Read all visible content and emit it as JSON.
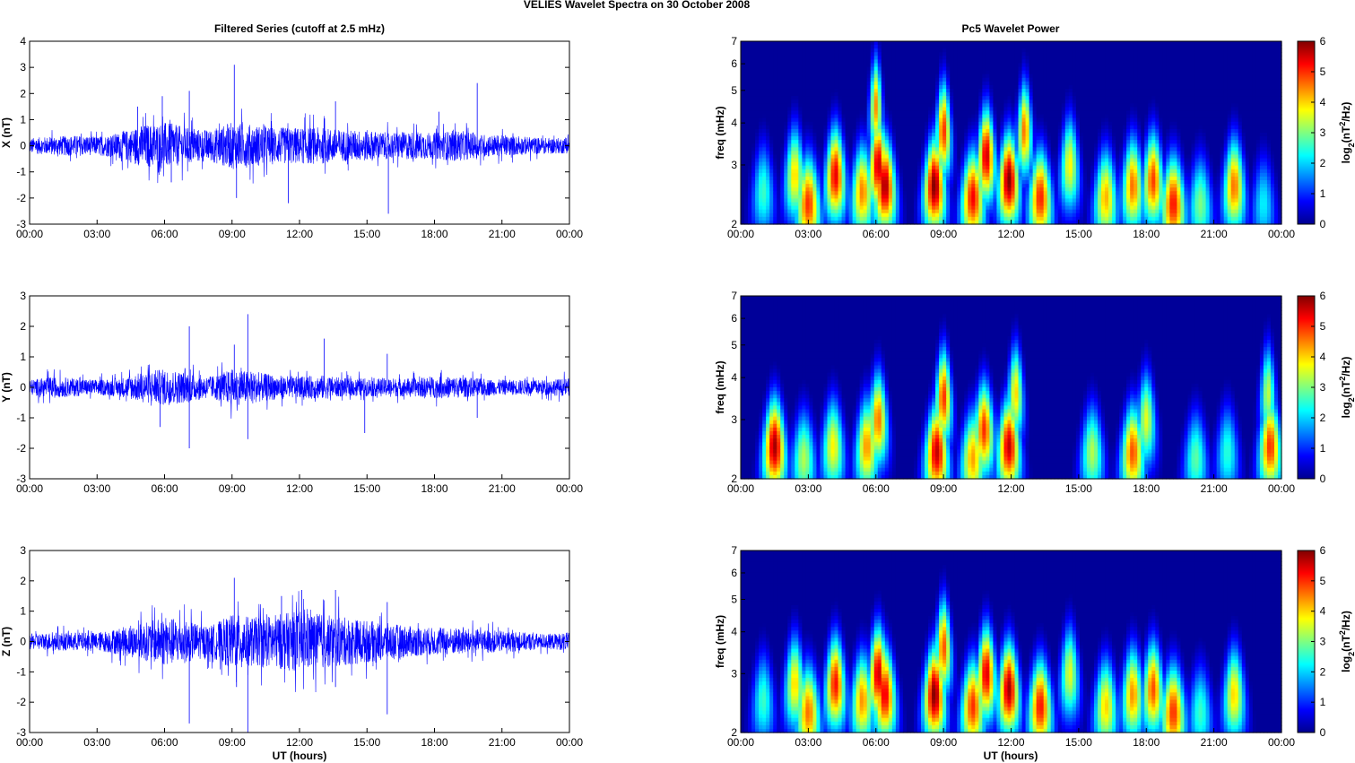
{
  "figure_title": "VELIES Wavelet Spectra on 30 October   2008",
  "left_title": "Filtered Series (cutoff at 2.5 mHz)",
  "right_title": "Pc5 Wavelet Power",
  "xlabel": "UT (hours)",
  "freq_label": "freq (mHz)",
  "colorbar_label": "log2(nT2/Hz)",
  "colors": {
    "trace": "#0000ff",
    "axes": "#000000",
    "background": "#ffffff"
  },
  "chart_data": [
    {
      "type": "line",
      "title": "Filtered Series (cutoff at 2.5 mHz)",
      "ylabel": "X (nT)",
      "xlim": [
        "00:00",
        "24:00"
      ],
      "ylim": [
        -3,
        4
      ],
      "x_ticks": [
        "00:00",
        "03:00",
        "06:00",
        "09:00",
        "12:00",
        "15:00",
        "18:00",
        "21:00",
        "00:00"
      ],
      "y_ticks": [
        -3,
        -2,
        -1,
        0,
        1,
        2,
        3,
        4
      ],
      "envelope": {
        "x": [
          0,
          1,
          2,
          3,
          4,
          5,
          6,
          7,
          8,
          9,
          10,
          11,
          12,
          13,
          14,
          15,
          16,
          17,
          18,
          19,
          20,
          21,
          22,
          23,
          24
        ],
        "amp": [
          0.3,
          0.35,
          0.4,
          0.35,
          0.5,
          0.8,
          0.9,
          0.7,
          0.6,
          0.9,
          0.8,
          0.7,
          0.7,
          0.7,
          0.6,
          0.6,
          0.5,
          0.55,
          0.5,
          0.6,
          0.45,
          0.4,
          0.35,
          0.3,
          0.3
        ]
      },
      "spikes": [
        {
          "x": 4.8,
          "y": 1.5
        },
        {
          "x": 5.9,
          "y": 1.9
        },
        {
          "x": 6.3,
          "y": -1.4
        },
        {
          "x": 7.1,
          "y": 2.1
        },
        {
          "x": 9.1,
          "y": 3.1
        },
        {
          "x": 9.2,
          "y": -2.0
        },
        {
          "x": 11.5,
          "y": -2.2
        },
        {
          "x": 13.6,
          "y": 1.7
        },
        {
          "x": 15.95,
          "y": -2.6
        },
        {
          "x": 18.2,
          "y": 1.3
        },
        {
          "x": 19.9,
          "y": 2.4
        }
      ]
    },
    {
      "type": "line",
      "ylabel": "Y (nT)",
      "xlim": [
        "00:00",
        "24:00"
      ],
      "ylim": [
        -3,
        3
      ],
      "x_ticks": [
        "00:00",
        "03:00",
        "06:00",
        "09:00",
        "12:00",
        "15:00",
        "18:00",
        "21:00",
        "00:00"
      ],
      "y_ticks": [
        -3,
        -2,
        -1,
        0,
        1,
        2,
        3
      ],
      "envelope": {
        "x": [
          0,
          1,
          2,
          3,
          4,
          5,
          6,
          7,
          8,
          9,
          10,
          11,
          12,
          13,
          14,
          15,
          16,
          17,
          18,
          19,
          20,
          21,
          22,
          23,
          24
        ],
        "amp": [
          0.25,
          0.35,
          0.3,
          0.25,
          0.3,
          0.5,
          0.6,
          0.5,
          0.35,
          0.6,
          0.5,
          0.4,
          0.35,
          0.4,
          0.3,
          0.3,
          0.3,
          0.3,
          0.35,
          0.35,
          0.3,
          0.25,
          0.25,
          0.25,
          0.3
        ]
      },
      "spikes": [
        {
          "x": 5.8,
          "y": -1.3
        },
        {
          "x": 7.1,
          "y": 2.0
        },
        {
          "x": 7.1,
          "y": -2.0
        },
        {
          "x": 9.1,
          "y": 1.4
        },
        {
          "x": 9.7,
          "y": 2.4
        },
        {
          "x": 9.7,
          "y": -1.7
        },
        {
          "x": 13.1,
          "y": 1.6
        },
        {
          "x": 14.9,
          "y": -1.5
        },
        {
          "x": 15.9,
          "y": 1.1
        },
        {
          "x": 19.9,
          "y": -1.0
        },
        {
          "x": 24.0,
          "y": 0.7
        }
      ]
    },
    {
      "type": "line",
      "ylabel": "Z (nT)",
      "xlim": [
        "00:00",
        "24:00"
      ],
      "ylim": [
        -3,
        3
      ],
      "x_ticks": [
        "00:00",
        "03:00",
        "06:00",
        "09:00",
        "12:00",
        "15:00",
        "18:00",
        "21:00",
        "00:00"
      ],
      "y_ticks": [
        -3,
        -2,
        -1,
        0,
        1,
        2,
        3
      ],
      "envelope": {
        "x": [
          0,
          1,
          2,
          3,
          4,
          5,
          6,
          7,
          8,
          9,
          10,
          11,
          12,
          13,
          14,
          15,
          16,
          17,
          18,
          19,
          20,
          21,
          22,
          23,
          24
        ],
        "amp": [
          0.25,
          0.3,
          0.3,
          0.3,
          0.45,
          0.6,
          0.8,
          0.7,
          0.5,
          0.9,
          0.8,
          0.9,
          1.0,
          0.9,
          0.8,
          0.7,
          0.6,
          0.5,
          0.45,
          0.45,
          0.4,
          0.35,
          0.3,
          0.25,
          0.3
        ]
      },
      "spikes": [
        {
          "x": 7.1,
          "y": -2.7
        },
        {
          "x": 9.1,
          "y": 2.1
        },
        {
          "x": 9.2,
          "y": -1.5
        },
        {
          "x": 9.7,
          "y": -3.0
        },
        {
          "x": 11.2,
          "y": 1.5
        },
        {
          "x": 12.1,
          "y": 1.7
        },
        {
          "x": 13.6,
          "y": 1.7
        },
        {
          "x": 13.6,
          "y": -1.5
        },
        {
          "x": 15.9,
          "y": 1.3
        },
        {
          "x": 15.9,
          "y": -2.4
        }
      ]
    },
    {
      "type": "heatmap",
      "title": "Pc5 Wavelet Power",
      "ylabel": "freq (mHz)",
      "colorbar_label": "log2(nT2/Hz)",
      "colorbar_range": [
        0,
        6
      ],
      "colorbar_ticks": [
        0,
        1,
        2,
        3,
        4,
        5,
        6
      ],
      "y_scale": "log",
      "ylim": [
        2,
        7
      ],
      "y_ticks": [
        2,
        3,
        4,
        5,
        6,
        7
      ],
      "xlim": [
        "00:00",
        "24:00"
      ],
      "x_ticks": [
        "00:00",
        "03:00",
        "06:00",
        "09:00",
        "12:00",
        "15:00",
        "18:00",
        "21:00",
        "00:00"
      ],
      "blobs": [
        {
          "t": 2.4,
          "f": 2.8,
          "v": 4.0
        },
        {
          "t": 3.0,
          "f": 2.3,
          "v": 5.0
        },
        {
          "t": 4.2,
          "f": 2.8,
          "v": 5.4
        },
        {
          "t": 5.4,
          "f": 2.5,
          "v": 4.5
        },
        {
          "t": 6.1,
          "f": 3.0,
          "v": 5.6
        },
        {
          "t": 6.4,
          "f": 2.6,
          "v": 5.8
        },
        {
          "t": 6.0,
          "f": 4.5,
          "v": 4.4
        },
        {
          "t": 8.6,
          "f": 2.6,
          "v": 6.0
        },
        {
          "t": 9.0,
          "f": 3.8,
          "v": 5.0
        },
        {
          "t": 10.3,
          "f": 2.4,
          "v": 5.3
        },
        {
          "t": 10.9,
          "f": 3.2,
          "v": 5.6
        },
        {
          "t": 11.9,
          "f": 2.7,
          "v": 6.0
        },
        {
          "t": 12.6,
          "f": 3.8,
          "v": 4.6
        },
        {
          "t": 13.3,
          "f": 2.4,
          "v": 5.1
        },
        {
          "t": 14.6,
          "f": 3.0,
          "v": 3.8
        },
        {
          "t": 16.2,
          "f": 2.4,
          "v": 4.2
        },
        {
          "t": 17.4,
          "f": 2.6,
          "v": 4.6
        },
        {
          "t": 18.3,
          "f": 2.7,
          "v": 4.9
        },
        {
          "t": 19.2,
          "f": 2.3,
          "v": 5.2
        },
        {
          "t": 21.9,
          "f": 2.6,
          "v": 4.6
        },
        {
          "t": 1.0,
          "f": 2.5,
          "v": 2.6
        },
        {
          "t": 20.4,
          "f": 2.3,
          "v": 3.0
        },
        {
          "t": 23.2,
          "f": 2.3,
          "v": 2.2
        }
      ]
    },
    {
      "type": "heatmap",
      "ylabel": "freq (mHz)",
      "colorbar_label": "log2(nT2/Hz)",
      "colorbar_range": [
        0,
        6
      ],
      "colorbar_ticks": [
        0,
        1,
        2,
        3,
        4,
        5,
        6
      ],
      "y_scale": "log",
      "ylim": [
        2,
        7
      ],
      "y_ticks": [
        2,
        3,
        4,
        5,
        6,
        7
      ],
      "xlim": [
        "00:00",
        "24:00"
      ],
      "x_ticks": [
        "00:00",
        "03:00",
        "06:00",
        "09:00",
        "12:00",
        "15:00",
        "18:00",
        "21:00",
        "00:00"
      ],
      "blobs": [
        {
          "t": 1.5,
          "f": 2.5,
          "v": 5.8
        },
        {
          "t": 2.8,
          "f": 2.3,
          "v": 3.3
        },
        {
          "t": 4.1,
          "f": 2.5,
          "v": 3.8
        },
        {
          "t": 5.6,
          "f": 2.5,
          "v": 4.4
        },
        {
          "t": 6.1,
          "f": 3.0,
          "v": 4.6
        },
        {
          "t": 8.7,
          "f": 2.4,
          "v": 5.6
        },
        {
          "t": 9.0,
          "f": 3.5,
          "v": 5.0
        },
        {
          "t": 10.3,
          "f": 2.3,
          "v": 4.3
        },
        {
          "t": 10.8,
          "f": 2.8,
          "v": 5.0
        },
        {
          "t": 11.9,
          "f": 2.5,
          "v": 5.6
        },
        {
          "t": 12.2,
          "f": 3.6,
          "v": 4.0
        },
        {
          "t": 15.6,
          "f": 2.4,
          "v": 3.3
        },
        {
          "t": 17.4,
          "f": 2.4,
          "v": 4.8
        },
        {
          "t": 18.0,
          "f": 3.0,
          "v": 3.6
        },
        {
          "t": 20.2,
          "f": 2.3,
          "v": 2.8
        },
        {
          "t": 21.6,
          "f": 2.4,
          "v": 2.5
        },
        {
          "t": 23.5,
          "f": 2.5,
          "v": 5.0
        },
        {
          "t": 23.4,
          "f": 3.6,
          "v": 3.4
        }
      ]
    },
    {
      "type": "heatmap",
      "ylabel": "freq (mHz)",
      "colorbar_label": "log2(nT2/Hz)",
      "colorbar_range": [
        0,
        6
      ],
      "colorbar_ticks": [
        0,
        1,
        2,
        3,
        4,
        5,
        6
      ],
      "y_scale": "log",
      "ylim": [
        2,
        7
      ],
      "y_ticks": [
        2,
        3,
        4,
        5,
        6,
        7
      ],
      "xlim": [
        "00:00",
        "24:00"
      ],
      "x_ticks": [
        "00:00",
        "03:00",
        "06:00",
        "09:00",
        "12:00",
        "15:00",
        "18:00",
        "21:00",
        "00:00"
      ],
      "blobs": [
        {
          "t": 2.4,
          "f": 2.8,
          "v": 4.0
        },
        {
          "t": 3.0,
          "f": 2.3,
          "v": 4.6
        },
        {
          "t": 4.2,
          "f": 2.8,
          "v": 5.2
        },
        {
          "t": 5.4,
          "f": 2.5,
          "v": 4.4
        },
        {
          "t": 6.1,
          "f": 3.0,
          "v": 5.6
        },
        {
          "t": 6.4,
          "f": 2.6,
          "v": 5.4
        },
        {
          "t": 8.6,
          "f": 2.6,
          "v": 6.0
        },
        {
          "t": 9.0,
          "f": 3.6,
          "v": 4.8
        },
        {
          "t": 10.3,
          "f": 2.4,
          "v": 5.0
        },
        {
          "t": 10.9,
          "f": 3.0,
          "v": 5.5
        },
        {
          "t": 11.9,
          "f": 2.7,
          "v": 5.8
        },
        {
          "t": 13.3,
          "f": 2.4,
          "v": 5.2
        },
        {
          "t": 14.6,
          "f": 3.0,
          "v": 3.6
        },
        {
          "t": 16.2,
          "f": 2.4,
          "v": 4.0
        },
        {
          "t": 17.4,
          "f": 2.6,
          "v": 4.4
        },
        {
          "t": 18.3,
          "f": 2.7,
          "v": 4.8
        },
        {
          "t": 19.2,
          "f": 2.3,
          "v": 5.0
        },
        {
          "t": 21.9,
          "f": 2.6,
          "v": 4.0
        },
        {
          "t": 1.0,
          "f": 2.5,
          "v": 2.6
        },
        {
          "t": 20.4,
          "f": 2.3,
          "v": 2.6
        }
      ]
    }
  ]
}
